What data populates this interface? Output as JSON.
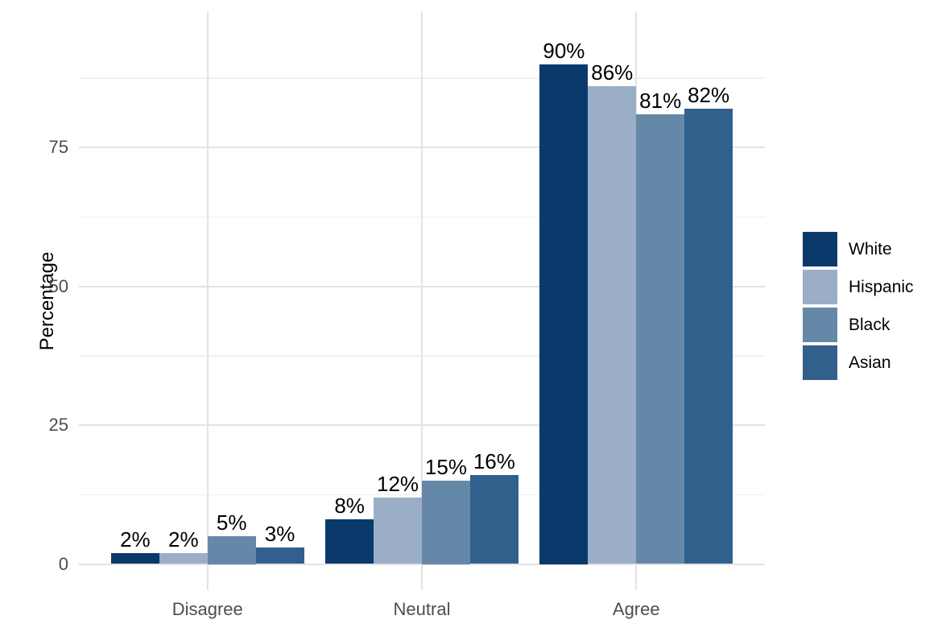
{
  "chart_data": {
    "type": "bar",
    "title": "",
    "ylabel": "Percentage",
    "xlabel": "",
    "categories": [
      "Disagree",
      "Neutral",
      "Agree"
    ],
    "series": [
      {
        "name": "White",
        "color": "#093A6B",
        "values": [
          2,
          8,
          90
        ],
        "labels": [
          "2%",
          "8%",
          "90%"
        ]
      },
      {
        "name": "Hispanic",
        "color": "#9AAEC7",
        "values": [
          2,
          12,
          86
        ],
        "labels": [
          "2%",
          "12%",
          "86%"
        ]
      },
      {
        "name": "Black",
        "color": "#6688A8",
        "values": [
          5,
          15,
          81
        ],
        "labels": [
          "5%",
          "15%",
          "81%"
        ]
      },
      {
        "name": "Asian",
        "color": "#31608D",
        "values": [
          3,
          16,
          82
        ],
        "labels": [
          "3%",
          "16%",
          "82%"
        ]
      }
    ],
    "yticks": [
      0,
      25,
      50,
      75
    ],
    "yticks_minor": [
      12.5,
      37.5,
      62.5,
      87.5
    ],
    "ylim": [
      -4.8,
      99.4
    ],
    "grid": "horizontal major+minor, vertical major at category centers",
    "legend_position": "right",
    "background": "#ffffff",
    "gridline_color": "#e3e3e3",
    "axis_text_color": "#4d4d4d",
    "label_text_color": "#000000"
  }
}
